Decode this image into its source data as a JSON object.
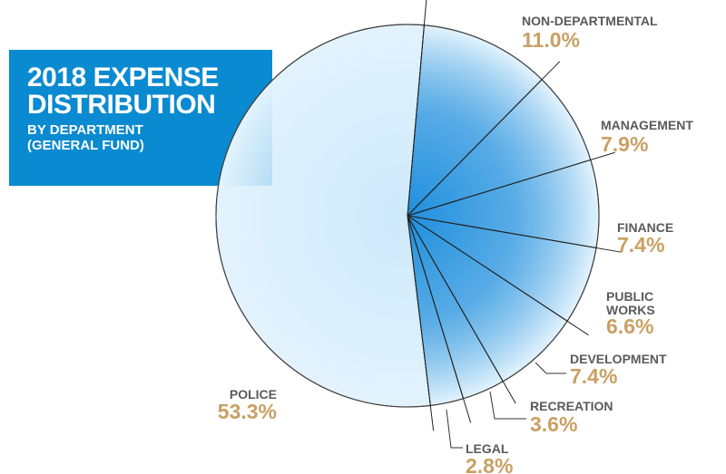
{
  "chart_data": {
    "type": "pie",
    "title": "2018 EXPENSE DISTRIBUTION",
    "subtitle": "BY DEPARTMENT (GENERAL FUND)",
    "categories": [
      "NON-DEPARTMENTAL",
      "MANAGEMENT",
      "FINANCE",
      "PUBLIC WORKS",
      "DEVELOPMENT",
      "RECREATION",
      "LEGAL",
      "POLICE"
    ],
    "values": [
      11.0,
      7.9,
      7.4,
      6.6,
      7.4,
      3.6,
      2.8,
      53.3
    ],
    "value_labels": [
      "11.0%",
      "7.9%",
      "7.4%",
      "6.6%",
      "7.4%",
      "3.6%",
      "2.8%",
      "53.3%"
    ],
    "colors": [
      "#1f8fdd",
      "#1f8fdd",
      "#1f8fdd",
      "#1f8fdd",
      "#1f8fdd",
      "#1f8fdd",
      "#1f8fdd",
      "#cde9fb"
    ]
  }
}
